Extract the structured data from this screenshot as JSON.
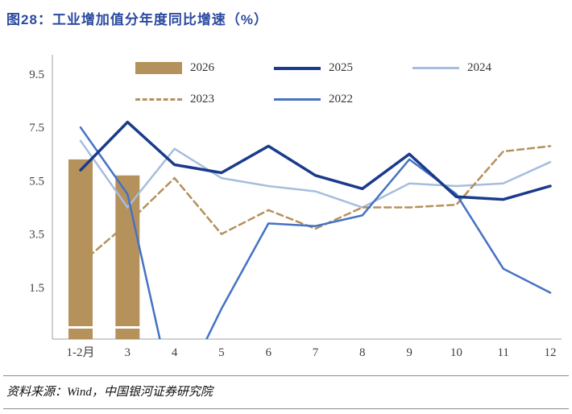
{
  "title": "图28：工业增加值分年度同比增速（%）",
  "source": "资料来源：Wind，中国银河证券研究院",
  "colors": {
    "title_text": "#2b4a9f",
    "axis": "#a0a0a0",
    "tick_text": "#404040",
    "zero_gridline": "#ffffff"
  },
  "chart_data": {
    "type": "bar",
    "subtype": "bar+line combo",
    "title": "工业增加值分年度同比增速（%）",
    "xlabel": "",
    "ylabel": "",
    "categories": [
      "1-2月",
      "3",
      "4",
      "5",
      "6",
      "7",
      "8",
      "9",
      "10",
      "11",
      "12"
    ],
    "y_ticks": [
      1.5,
      3.5,
      5.5,
      7.5,
      9.5
    ],
    "ylim": [
      -0.5,
      10.1
    ],
    "grid": false,
    "legend_position": "top-inside",
    "legend_rows": [
      [
        "2026",
        "2025",
        "2024"
      ],
      [
        "2023",
        "2022"
      ]
    ],
    "series": [
      {
        "name": "2026",
        "type": "bar",
        "color": "#b5915c",
        "stroke_width": 0,
        "values": [
          6.3,
          5.7,
          null,
          null,
          null,
          null,
          null,
          null,
          null,
          null,
          null
        ]
      },
      {
        "name": "2025",
        "type": "line",
        "color": "#1a3a8c",
        "stroke_width": 3.5,
        "values": [
          5.9,
          7.7,
          6.1,
          5.8,
          6.8,
          5.7,
          5.2,
          6.5,
          4.9,
          4.8,
          5.3
        ]
      },
      {
        "name": "2024",
        "type": "line",
        "color": "#a6bedd",
        "stroke_width": 2.5,
        "values": [
          7.0,
          4.5,
          6.7,
          5.6,
          5.3,
          5.1,
          4.5,
          5.4,
          5.3,
          5.4,
          6.2
        ]
      },
      {
        "name": "2023",
        "type": "line",
        "dashed": true,
        "color": "#b5915c",
        "stroke_width": 2.5,
        "values": [
          2.4,
          3.9,
          5.6,
          3.5,
          4.4,
          3.7,
          4.5,
          4.5,
          4.6,
          6.6,
          6.8
        ]
      },
      {
        "name": "2022",
        "type": "line",
        "color": "#4472c4",
        "stroke_width": 2.5,
        "values": [
          7.5,
          5.0,
          -2.9,
          0.7,
          3.9,
          3.8,
          4.2,
          6.3,
          5.0,
          2.2,
          1.3
        ]
      }
    ]
  }
}
